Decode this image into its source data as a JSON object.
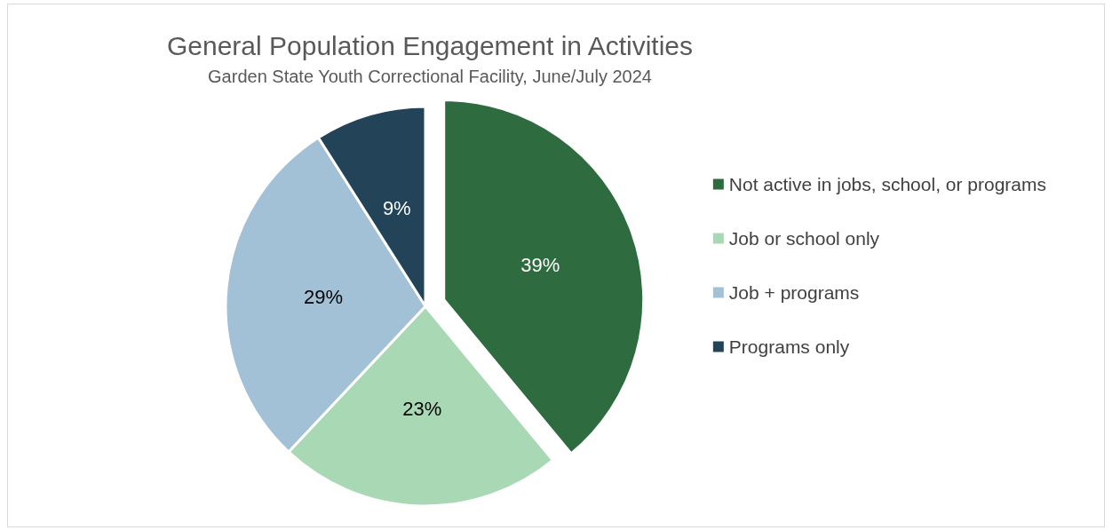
{
  "chart_data": {
    "type": "pie",
    "title": "General Population Engagement in Activities",
    "subtitle": "Garden State Youth Correctional Facility, June/July 2024",
    "categories": [
      "Not active in jobs, school, or programs",
      "Job or school only",
      "Job + programs",
      "Programs only"
    ],
    "values": [
      39,
      23,
      29,
      9
    ],
    "value_labels": [
      "39%",
      "23%",
      "29%",
      "9%"
    ],
    "colors": [
      "#2e6b3f",
      "#a9d8b4",
      "#a2c1d6",
      "#234359"
    ],
    "legend": "right"
  }
}
